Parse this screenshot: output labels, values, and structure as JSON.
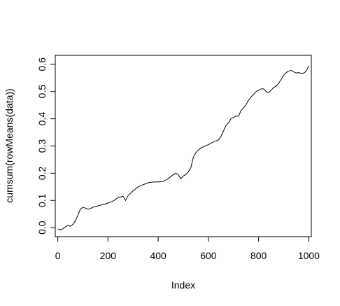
{
  "chart_data": {
    "type": "line",
    "title": "",
    "xlabel": "Index",
    "ylabel": "cumsum(rowMeans(data))",
    "xlim": [
      -10,
      1010
    ],
    "ylim": [
      -0.033,
      0.633
    ],
    "xticks": [
      0,
      200,
      400,
      600,
      800,
      1000
    ],
    "xtick_labels": [
      "0",
      "200",
      "400",
      "600",
      "800",
      "1000"
    ],
    "yticks": [
      0.0,
      0.1,
      0.2,
      0.3,
      0.4,
      0.5,
      0.6
    ],
    "ytick_labels": [
      "0.0",
      "0.1",
      "0.2",
      "0.3",
      "0.4",
      "0.5",
      "0.6"
    ],
    "grid": false,
    "legend": "none",
    "line_color": "#000000",
    "series": [
      {
        "x": [
          1,
          10,
          20,
          30,
          40,
          50,
          60,
          70,
          80,
          90,
          100,
          110,
          120,
          130,
          140,
          150,
          160,
          180,
          200,
          220,
          240,
          260,
          270,
          280,
          300,
          320,
          340,
          360,
          380,
          400,
          420,
          440,
          460,
          470,
          480,
          490,
          500,
          510,
          520,
          530,
          540,
          550,
          560,
          570,
          580,
          600,
          620,
          640,
          650,
          660,
          670,
          680,
          690,
          700,
          710,
          720,
          730,
          740,
          750,
          760,
          770,
          780,
          790,
          800,
          810,
          820,
          830,
          840,
          850,
          860,
          870,
          880,
          890,
          900,
          910,
          920,
          930,
          940,
          950,
          960,
          970,
          980,
          990,
          1000
        ],
        "y": [
          -0.005,
          -0.008,
          -0.004,
          0.003,
          0.008,
          0.005,
          0.012,
          0.025,
          0.045,
          0.068,
          0.075,
          0.072,
          0.068,
          0.07,
          0.075,
          0.078,
          0.08,
          0.085,
          0.09,
          0.098,
          0.11,
          0.115,
          0.1,
          0.118,
          0.135,
          0.15,
          0.158,
          0.165,
          0.168,
          0.168,
          0.17,
          0.18,
          0.195,
          0.2,
          0.195,
          0.18,
          0.19,
          0.195,
          0.205,
          0.22,
          0.258,
          0.275,
          0.285,
          0.293,
          0.297,
          0.305,
          0.315,
          0.322,
          0.335,
          0.355,
          0.375,
          0.385,
          0.4,
          0.405,
          0.41,
          0.41,
          0.43,
          0.44,
          0.452,
          0.468,
          0.48,
          0.49,
          0.5,
          0.505,
          0.51,
          0.51,
          0.5,
          0.495,
          0.505,
          0.515,
          0.52,
          0.53,
          0.545,
          0.56,
          0.57,
          0.575,
          0.578,
          0.572,
          0.568,
          0.57,
          0.565,
          0.568,
          0.575,
          0.595
        ]
      }
    ]
  }
}
